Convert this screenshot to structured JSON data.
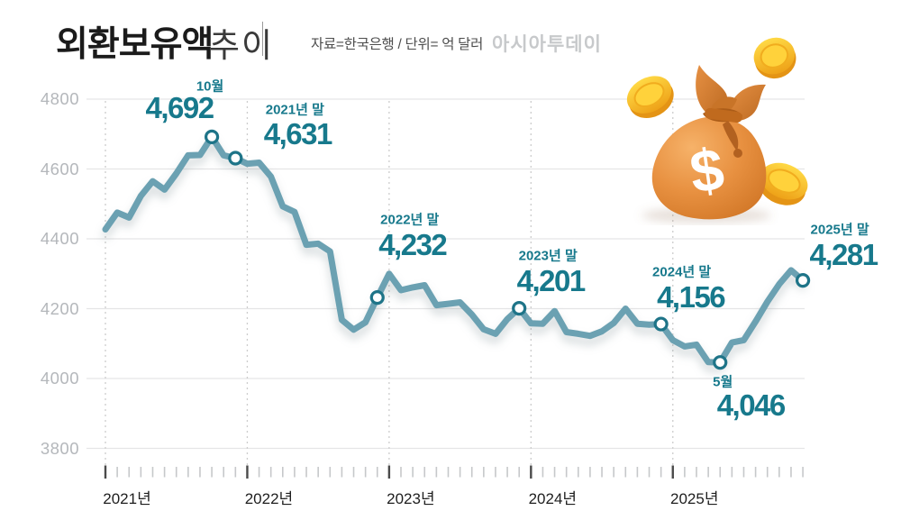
{
  "header": {
    "title_main": "외환보유액",
    "title_sub": "추이",
    "source_note": "자료=한국은행 / 단위= 억 달러",
    "publisher": "아시아투데이"
  },
  "illustration": {
    "name": "money-bag-with-coins",
    "currency_symbol": "$"
  },
  "colors": {
    "line": "#6BA1B2",
    "marker_ring": "#1E7488",
    "annotation_text": "#17798C",
    "grid_line": "#E5E5E6",
    "dashed_guide": "#CDCDCD",
    "tick": "#C6C8CA",
    "tick_year": "#4A4A4A",
    "y_axis_label": "#B4B7BB",
    "x_axis_label": "#1E1E1E",
    "bag_orange": "#E18937",
    "coin_gold": "#FFD23B"
  },
  "chart_data": {
    "type": "line",
    "title": "외환보유액 추이",
    "source": "한국은행",
    "unit": "억 달러",
    "x_start": "2021-01",
    "x_end": "2025-12",
    "x_year_labels": [
      "2021년",
      "2022년",
      "2023년",
      "2024년",
      "2025년"
    ],
    "y_ticks": [
      3800,
      4000,
      4200,
      4400,
      4600,
      4800
    ],
    "ylim": [
      3750,
      4850
    ],
    "grid": true,
    "series": [
      {
        "name": "외환보유액",
        "values": [
          4427,
          4475,
          4461,
          4523,
          4565,
          4541,
          4587,
          4639,
          4640,
          4692,
          4639,
          4631,
          4615,
          4618,
          4578,
          4493,
          4477,
          4383,
          4386,
          4364,
          4168,
          4140,
          4161,
          4232,
          4300,
          4253,
          4261,
          4267,
          4210,
          4214,
          4218,
          4183,
          4141,
          4128,
          4170,
          4201,
          4158,
          4157,
          4193,
          4133,
          4128,
          4122,
          4135,
          4159,
          4200,
          4157,
          4154,
          4156,
          4110,
          4092,
          4097,
          4047,
          4046,
          4103,
          4110,
          4163,
          4220,
          4270,
          4310,
          4281
        ]
      }
    ],
    "annotations": [
      {
        "month_label": "10월",
        "value_label": "4,692",
        "value": 4692,
        "month_index": 9
      },
      {
        "month_label": "2021년 말",
        "value_label": "4,631",
        "value": 4631,
        "month_index": 11
      },
      {
        "month_label": "2022년 말",
        "value_label": "4,232",
        "value": 4232,
        "month_index": 23
      },
      {
        "month_label": "2023년 말",
        "value_label": "4,201",
        "value": 4201,
        "month_index": 35
      },
      {
        "month_label": "2024년 말",
        "value_label": "4,156",
        "value": 4156,
        "month_index": 47
      },
      {
        "month_label": "5월",
        "value_label": "4,046",
        "value": 4046,
        "month_index": 52
      },
      {
        "month_label": "2025년 말",
        "value_label": "4,281",
        "value": 4281,
        "month_index": 59
      }
    ]
  }
}
